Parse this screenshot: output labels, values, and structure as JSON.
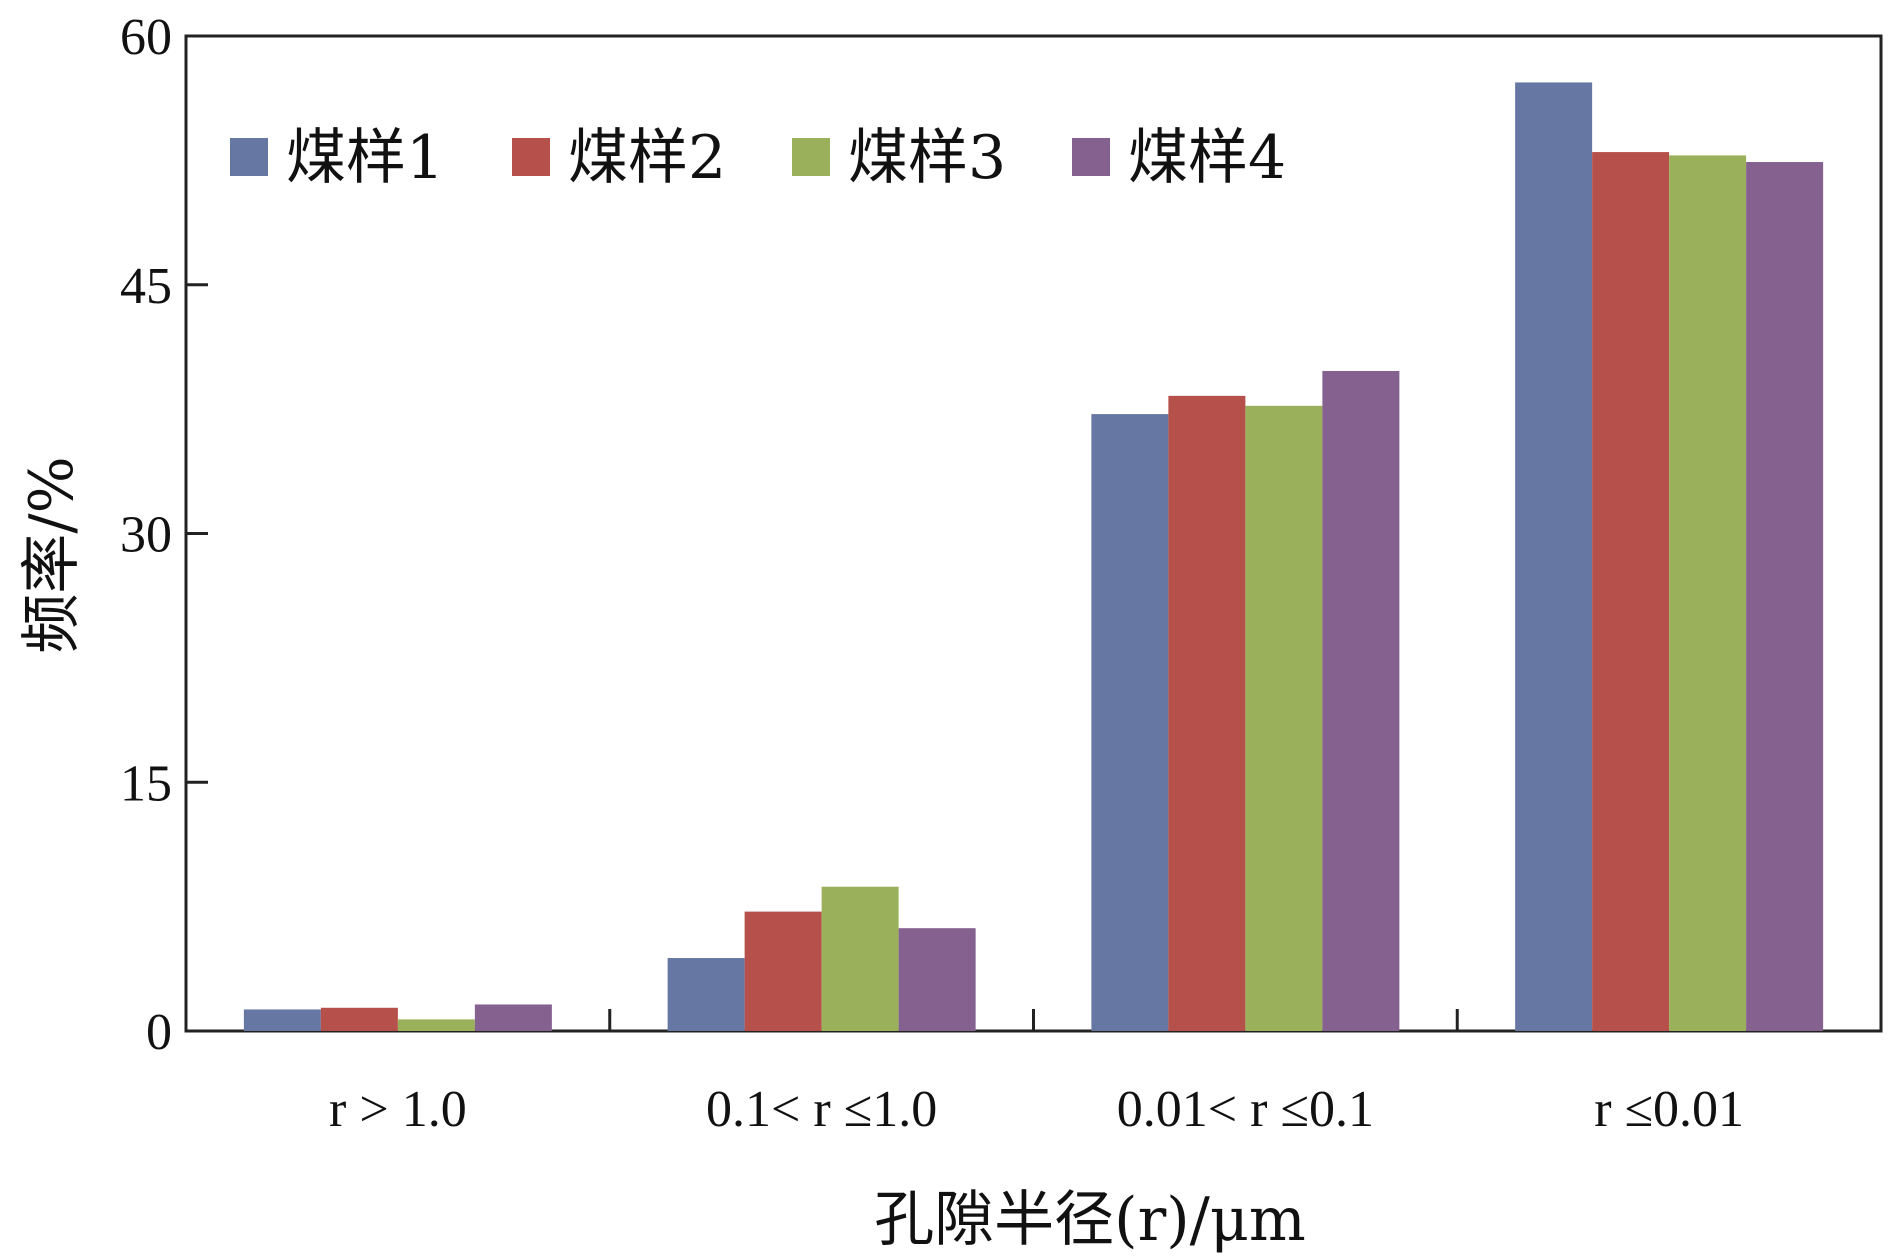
{
  "chart_data": {
    "type": "bar",
    "ylabel": "频率/%",
    "xlabel": "孔隙半径(r)/μm",
    "ylim": [
      0,
      60
    ],
    "yticks": [
      0,
      15,
      30,
      45,
      60
    ],
    "ytick_labels": [
      "0",
      "15",
      "30",
      "45",
      "60"
    ],
    "grid": false,
    "legend_position": "top-left",
    "categories": [
      "r > 1.0",
      "0.1< r ≤1.0",
      "0.01< r ≤0.1",
      "r ≤0.01"
    ],
    "series": [
      {
        "name": "煤样1",
        "color": "#6677A3",
        "values": [
          1.3,
          4.4,
          37.2,
          57.2
        ]
      },
      {
        "name": "煤样2",
        "color": "#B5504A",
        "values": [
          1.4,
          7.2,
          38.3,
          53.0
        ]
      },
      {
        "name": "煤样3",
        "color": "#9AB05A",
        "values": [
          0.7,
          8.7,
          37.7,
          52.8
        ]
      },
      {
        "name": "煤样4",
        "color": "#84618F",
        "values": [
          1.6,
          6.2,
          39.8,
          52.4
        ]
      }
    ]
  }
}
